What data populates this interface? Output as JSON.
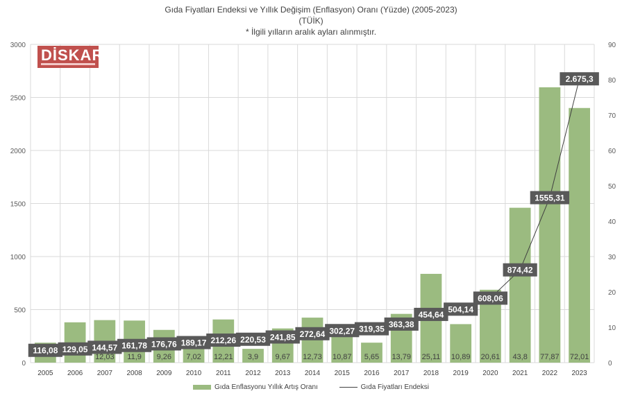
{
  "chart_data": {
    "type": "bar",
    "title": "Gıda Fiyatları Endeksi ve Yıllık Değişim (Enflasyon) Oranı (Yüzde) (2005-2023)",
    "subtitle": "(TÜİK)",
    "note": "* İlgili yılların aralık ayları alınmıştır.",
    "categories": [
      "2005",
      "2006",
      "2007",
      "2008",
      "2009",
      "2010",
      "2011",
      "2012",
      "2013",
      "2014",
      "2015",
      "2016",
      "2017",
      "2018",
      "2019",
      "2020",
      "2021",
      "2022",
      "2023"
    ],
    "series": [
      {
        "name": "Gıda Enflasyonu Yıllık Artış Oranı",
        "type": "bar",
        "axis": "right",
        "color": "#9bbb80",
        "values": [
          5.64,
          11.4,
          12.03,
          11.9,
          9.26,
          7.02,
          12.21,
          3.9,
          9.67,
          12.73,
          10.87,
          5.65,
          13.79,
          25.11,
          10.89,
          20.61,
          43.8,
          77.87,
          72.01
        ],
        "labels": [
          "",
          "",
          "12,03",
          "11,9",
          "9,26",
          "7,02",
          "12,21",
          "3,9",
          "9,67",
          "12,73",
          "10,87",
          "5,65",
          "13,79",
          "25,11",
          "10,89",
          "20,61",
          "43,8",
          "77,87",
          "72,01"
        ]
      },
      {
        "name": "Gıda Fiyatları Endeksi",
        "type": "line",
        "axis": "left",
        "color": "#404040",
        "values": [
          116.08,
          129.05,
          144.57,
          161.78,
          176.76,
          189.17,
          212.26,
          220.53,
          241.85,
          272.64,
          302.27,
          319.35,
          363.38,
          454.64,
          504.14,
          608.06,
          874.42,
          1555.31,
          2675.3
        ],
        "labels": [
          "116,08",
          "129,05",
          "144,57",
          "161,78",
          "176,76",
          "189,17",
          "212,26",
          "220,53",
          "241,85",
          "272,64",
          "302,27",
          "319,35",
          "363,38",
          "454,64",
          "504,14",
          "608,06",
          "874,42",
          "1555,31",
          "2.675,3"
        ]
      }
    ],
    "y_left": {
      "min": 0,
      "max": 3000,
      "step": 500,
      "ticks": [
        "0",
        "500",
        "1000",
        "1500",
        "2000",
        "2500",
        "3000"
      ]
    },
    "y_right": {
      "min": 0,
      "max": 90,
      "step": 10,
      "ticks": [
        "0",
        "10",
        "20",
        "30",
        "40",
        "50",
        "60",
        "70",
        "80",
        "90"
      ]
    },
    "grid": true,
    "legend_position": "bottom"
  },
  "logo": {
    "text": "DİSKAR"
  },
  "colors": {
    "bar": "#9bbb80",
    "label_box": "#595959",
    "line": "#404040",
    "grid": "#d9d9d9"
  }
}
